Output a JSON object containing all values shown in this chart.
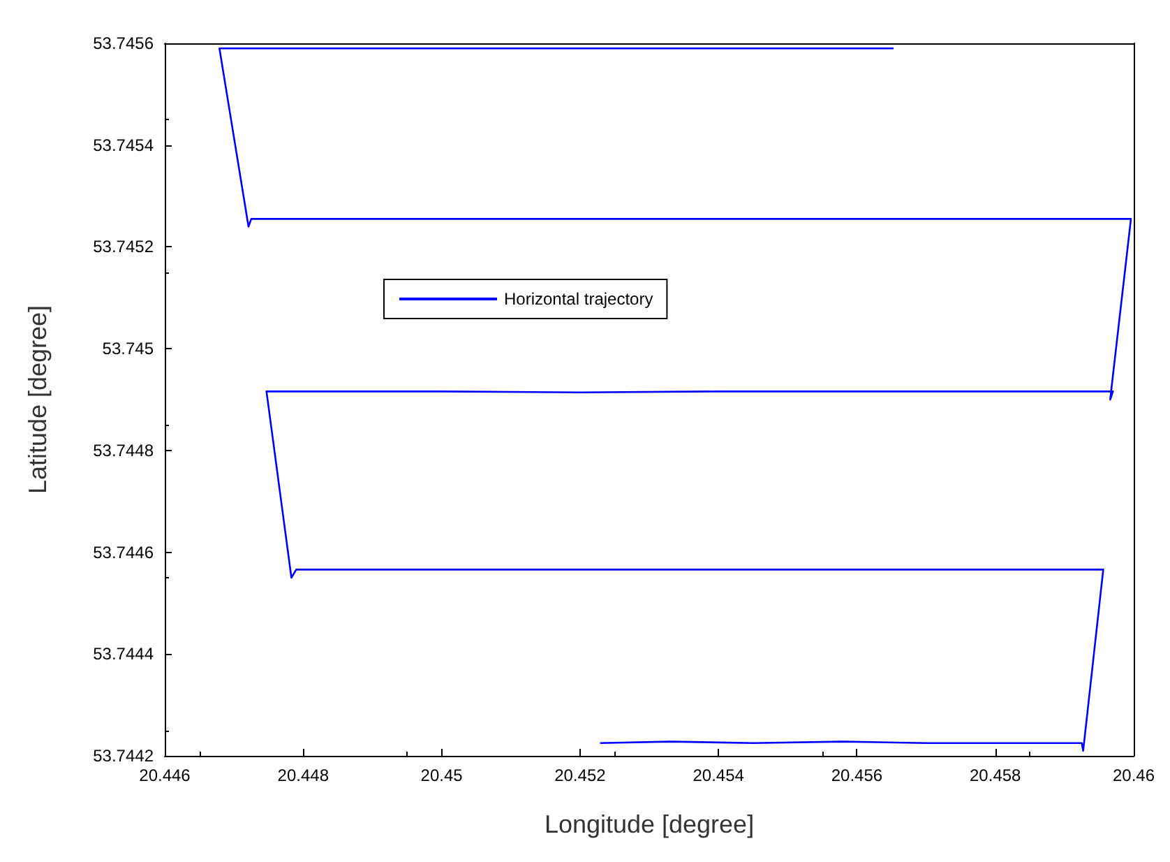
{
  "chart_data": {
    "type": "line",
    "xlabel": "Longitude [degree]",
    "ylabel": "Latitude [degree]",
    "series": [
      {
        "name": "Horizontal trajectory",
        "color": "#0000ff",
        "x": [
          20.45229,
          20.4533,
          20.4545,
          20.4558,
          20.457,
          20.4582,
          20.45925,
          20.45927,
          20.45956,
          20.4535,
          20.449,
          20.4479,
          20.44783,
          20.44747,
          20.448,
          20.45,
          20.452,
          20.454,
          20.456,
          20.458,
          20.4597,
          20.45966,
          20.45996,
          20.456,
          20.452,
          20.449,
          20.44725,
          20.44721,
          20.44679,
          20.45,
          20.453,
          20.45653
        ],
        "values": [
          53.744225,
          53.744228,
          53.744225,
          53.744228,
          53.744225,
          53.744225,
          53.744225,
          53.74421,
          53.744566,
          53.744566,
          53.744566,
          53.744566,
          53.74455,
          53.744916,
          53.744916,
          53.744916,
          53.744914,
          53.744916,
          53.744916,
          53.744916,
          53.744916,
          53.7449,
          53.745255,
          53.745255,
          53.745255,
          53.745255,
          53.745255,
          53.74524,
          53.74559,
          53.74559,
          53.74559,
          53.74559
        ]
      }
    ],
    "xlim": [
      20.446,
      20.46
    ],
    "xticks": [
      20.446,
      20.448,
      20.45,
      20.452,
      20.454,
      20.456,
      20.458,
      20.46
    ],
    "ylim": [
      53.7442,
      53.7456
    ],
    "yticks": [
      53.7442,
      53.7444,
      53.7446,
      53.7448,
      53.745,
      53.7452,
      53.7454,
      53.7456
    ],
    "grid": false,
    "legend": "center left",
    "marker": "none",
    "line_style": "solid"
  }
}
